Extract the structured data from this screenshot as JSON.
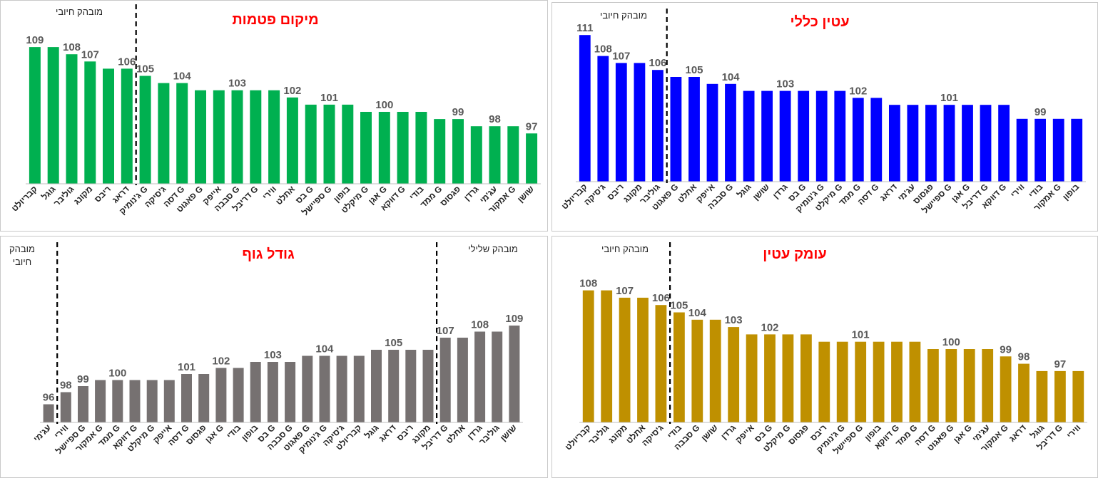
{
  "chart_data": [
    {
      "id": "body-size",
      "type": "bar",
      "title": "גודל גוף",
      "color": "#767171",
      "ylim": [
        93,
        110
      ],
      "annotations": [
        {
          "text": "מובהק חיובי",
          "lines": [
            "מובהק",
            "חיובי"
          ],
          "side": "left"
        },
        {
          "text": "מובהק שלילי",
          "side": "right"
        }
      ],
      "divider_after_index": [
        0,
        22
      ],
      "categories": [
        "עג'מי",
        "ווירי",
        "ספיישל G",
        "אמקור G",
        "ממד G",
        "דוּוקא G",
        "מיקלט G",
        "אייפק",
        "דסה G",
        "פגסוס",
        "אגן G",
        "בודי",
        "בופון",
        "בס G",
        "סבבה G",
        "פאגוט G",
        "ג'נומיק G",
        "ג'סיקה",
        "קבריולט",
        "גוגל",
        "דראג",
        "ריבס",
        "מקונג",
        "דריבל G",
        "אתלט",
        "גרדן",
        "גוליבר",
        "שושן"
      ],
      "values": [
        96,
        98,
        99,
        100,
        100,
        100,
        100,
        100,
        101,
        101,
        102,
        102,
        103,
        103,
        103,
        104,
        104,
        104,
        104,
        105,
        105,
        105,
        105,
        107,
        107,
        108,
        108,
        109
      ],
      "labels": [
        96,
        98,
        99,
        null,
        100,
        null,
        null,
        null,
        101,
        null,
        102,
        null,
        null,
        103,
        null,
        null,
        104,
        null,
        null,
        null,
        105,
        null,
        null,
        107,
        null,
        108,
        null,
        109
      ]
    },
    {
      "id": "general-staining",
      "type": "bar",
      "title": "עטין כללי",
      "color": "#0000ff",
      "ylim": [
        90,
        113
      ],
      "annotations": [
        {
          "text": "מובהק חיובי",
          "side": "left"
        }
      ],
      "divider_after_index": [
        4
      ],
      "categories": [
        "קבריולט",
        "ג'סיקה",
        "ריבס",
        "מקונג",
        "גוליבר",
        "פאגוט G",
        "אתלט",
        "אייפק",
        "סבבה G",
        "גוגל",
        "שושן",
        "גרדן",
        "בס G",
        "ג'נומיק G",
        "מיקלט G",
        "ממד G",
        "דסה G",
        "דראג",
        "עג'מי",
        "פגסוס",
        "ספיישל G",
        "אגן G",
        "דריבל G",
        "דוּוקא G",
        "ווירי",
        "בודי",
        "אמקור G",
        "בופון"
      ],
      "values": [
        111,
        108,
        107,
        107,
        106,
        105,
        105,
        104,
        104,
        103,
        103,
        103,
        103,
        103,
        103,
        102,
        102,
        101,
        101,
        101,
        101,
        101,
        101,
        101,
        99,
        99,
        99,
        99
      ],
      "labels": [
        111,
        108,
        107,
        null,
        106,
        null,
        105,
        null,
        104,
        null,
        null,
        103,
        null,
        null,
        null,
        102,
        null,
        null,
        null,
        null,
        101,
        null,
        null,
        null,
        null,
        99,
        null,
        null
      ]
    },
    {
      "id": "placement",
      "type": "bar",
      "title": "מיקום פטמות",
      "color": "#00b050",
      "ylim": [
        90,
        111
      ],
      "annotations": [
        {
          "text": "מובהק חיובי",
          "side": "left"
        }
      ],
      "divider_after_index": [
        5
      ],
      "categories": [
        "קבריולט",
        "גוגל",
        "גוליבר",
        "מקונג",
        "ריבס",
        "דראג",
        "ג'נומיק G",
        "ג'סיקה",
        "דסה G",
        "פאגוט G",
        "אייפק",
        "סבבה G",
        "דריבל G",
        "ווירי",
        "אתלט",
        "בס G",
        "ספיישל G",
        "בופון",
        "מיקלט G",
        "אגן G",
        "דוּוקא G",
        "בודי",
        "ממד G",
        "פגסוס",
        "גרדן",
        "עג'מי",
        "אמקור G",
        "שושן"
      ],
      "values": [
        109,
        109,
        108,
        107,
        106,
        106,
        105,
        104,
        104,
        103,
        103,
        103,
        103,
        103,
        102,
        101,
        101,
        101,
        100,
        100,
        100,
        100,
        99,
        99,
        98,
        98,
        98,
        97
      ],
      "labels": [
        109,
        null,
        108,
        107,
        null,
        106,
        105,
        null,
        104,
        null,
        null,
        103,
        null,
        null,
        102,
        null,
        101,
        null,
        null,
        100,
        null,
        null,
        null,
        99,
        null,
        98,
        null,
        97
      ]
    },
    {
      "id": "udder-depth",
      "type": "bar",
      "title": "עומק עטין",
      "color": "#bf9000",
      "ylim": [
        90,
        111
      ],
      "annotations": [
        {
          "text": "מובהק חיובי",
          "side": "left"
        }
      ],
      "divider_after_index": [
        4
      ],
      "categories": [
        "קבריולט",
        "גוליבר",
        "מקונג",
        "אתלט",
        "ג'סיקה",
        "בודי",
        "סבבה G",
        "שושן",
        "גרדן",
        "אייפק",
        "בס G",
        "מיקלט G",
        "פגסוס",
        "ריבס",
        "ג'נומיק G",
        "ספיישל G",
        "בופון",
        "דוּוקא G",
        "ממד G",
        "דסה G",
        "פאגוט G",
        "אגן G",
        "עג'מי",
        "אמקור G",
        "דראג",
        "גוגל",
        "דריבל G",
        "ווירי"
      ],
      "values": [
        108,
        108,
        107,
        107,
        106,
        105,
        104,
        104,
        103,
        102,
        102,
        102,
        102,
        101,
        101,
        101,
        101,
        101,
        101,
        100,
        100,
        100,
        100,
        99,
        98,
        97,
        97,
        97
      ],
      "labels": [
        108,
        null,
        107,
        null,
        106,
        105,
        104,
        null,
        103,
        null,
        102,
        null,
        null,
        null,
        null,
        101,
        null,
        null,
        null,
        null,
        100,
        null,
        null,
        99,
        98,
        null,
        97,
        null
      ]
    }
  ]
}
